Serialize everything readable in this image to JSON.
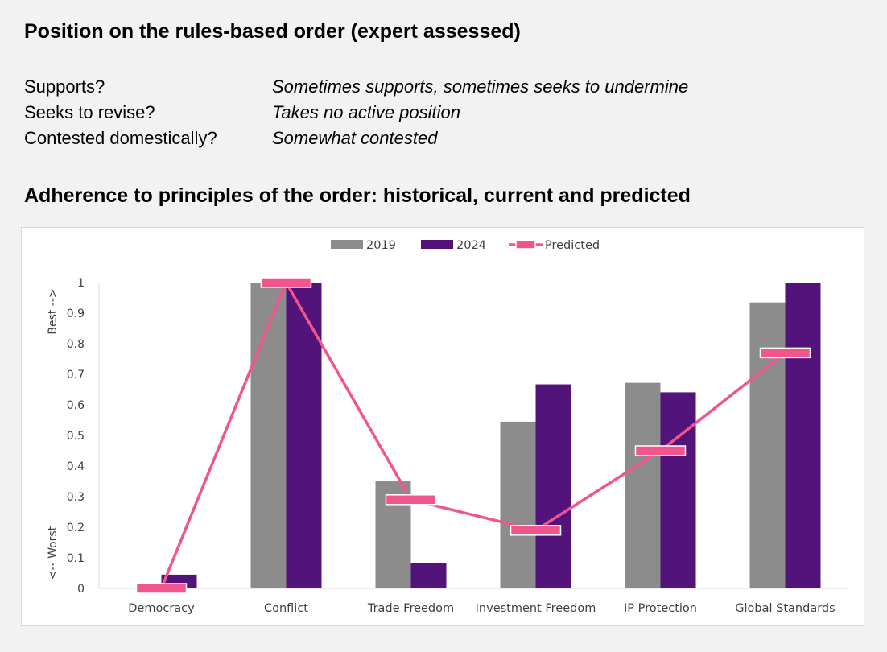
{
  "position": {
    "title": "Position on the rules-based order (expert assessed)",
    "rows": [
      {
        "question": "Supports?",
        "answer": "Sometimes supports, sometimes seeks to undermine"
      },
      {
        "question": "Seeks to revise?",
        "answer": "Takes no active position"
      },
      {
        "question": "Contested domestically?",
        "answer": "Somewhat contested"
      }
    ]
  },
  "adherence": {
    "title": "Adherence to principles of the order: historical, current and predicted"
  },
  "colors": {
    "series_2019": "#8c8c8c",
    "series_2024": "#52137a",
    "predicted": "#f0558d",
    "axis": "#d9d9d9",
    "text": "#404040"
  },
  "chart_data": {
    "type": "bar",
    "categories": [
      "Democracy",
      "Conflict",
      "Trade Freedom",
      "Investment Freedom",
      "IP Protection",
      "Global Standards"
    ],
    "series": [
      {
        "name": "2019",
        "type": "bar",
        "values": [
          0,
          1,
          0.35,
          0.545,
          0.672,
          0.935
        ]
      },
      {
        "name": "2024",
        "type": "bar",
        "values": [
          0.045,
          1,
          0.083,
          0.667,
          0.641,
          1
        ]
      },
      {
        "name": "Predicted",
        "type": "line",
        "values": [
          0,
          1,
          0.29,
          0.19,
          0.45,
          0.77
        ]
      }
    ],
    "ylim": [
      0,
      1
    ],
    "yticks": [
      "0",
      "0.1",
      "0.2",
      "0.3",
      "0.4",
      "0.5",
      "0.6",
      "0.7",
      "0.8",
      "0.9",
      "1"
    ],
    "ylabel_top": "Best -->",
    "ylabel_bottom": "<-- Worst",
    "legend_position": "top-center",
    "grid": false
  }
}
